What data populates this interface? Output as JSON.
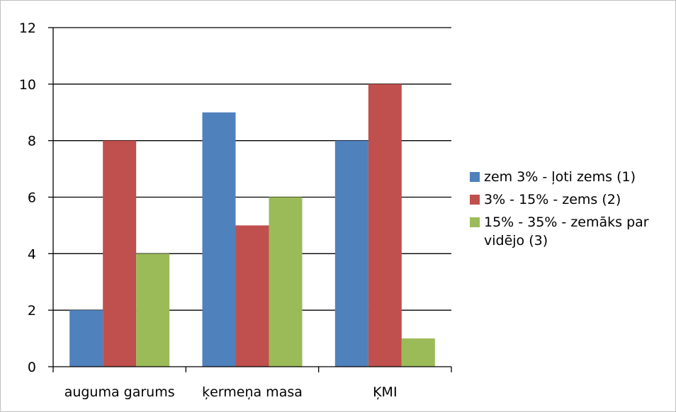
{
  "chart_data": {
    "type": "bar",
    "categories": [
      "auguma garums",
      "ķermeņa masa",
      "ĶMI"
    ],
    "series": [
      {
        "name": "zem 3% - ļoti zems (1)",
        "values": [
          2,
          9,
          8
        ],
        "color": "#4F81BD"
      },
      {
        "name": "3% - 15% - zems (2)",
        "values": [
          8,
          5,
          10
        ],
        "color": "#C0504D"
      },
      {
        "name": "15% - 35% - zemāks par vidējo (3)",
        "values": [
          4,
          6,
          1
        ],
        "color": "#9BBB59"
      }
    ],
    "ylim": [
      0,
      12
    ],
    "yticks": [
      "0",
      "2",
      "4",
      "6",
      "8",
      "10",
      "12"
    ],
    "grid": true,
    "legend_position": "right"
  }
}
